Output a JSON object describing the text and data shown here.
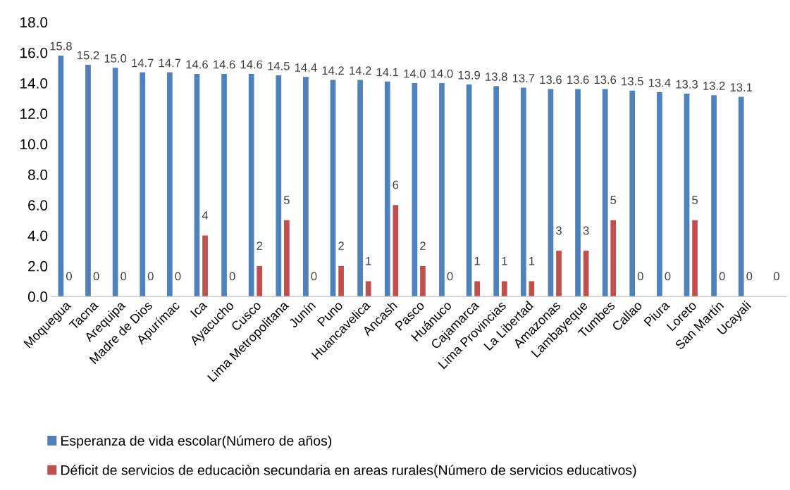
{
  "chart_data": {
    "type": "bar",
    "categories": [
      "Moquegua",
      "Tacna",
      "Arequipa",
      "Madre de Dios",
      "Apurímac",
      "Ica",
      "Ayacucho",
      "Cusco",
      "Lima Metropolitana",
      "Junín",
      "Puno",
      "Huancavelica",
      "Ancash",
      "Pasco",
      "Huánuco",
      "Cajamarca",
      "Lima Provincias",
      "La Libertad",
      "Amazonas",
      "Lambayeque",
      "Tumbes",
      "Callao",
      "Piura",
      "Loreto",
      "San Martín",
      "Ucayali",
      null
    ],
    "series": [
      {
        "name": "Esperanza de vida escolar(Número de años)",
        "color": "#4f81bd",
        "values": [
          15.8,
          15.2,
          15.0,
          14.7,
          14.7,
          14.6,
          14.6,
          14.6,
          14.5,
          14.4,
          14.2,
          14.2,
          14.1,
          14.0,
          14.0,
          13.9,
          13.8,
          13.7,
          13.6,
          13.6,
          13.6,
          13.5,
          13.4,
          13.3,
          13.2,
          13.1,
          null
        ],
        "value_labels": [
          "15.8",
          "15.2",
          "15.0",
          "14.7",
          "14.7",
          "14.6",
          "14.6",
          "14.6",
          "14.5",
          "14.4",
          "14.2",
          "14.2",
          "14.1",
          "14.0",
          "14.0",
          "13.9",
          "13.8",
          "13.7",
          "13.6",
          "13.6",
          "13.6",
          "13.5",
          "13.4",
          "13.3",
          "13.2",
          "13.1",
          null
        ]
      },
      {
        "name": "Déficit de servicios de educaciòn secundaria en areas rurales(Número de servicios educativos)",
        "color": "#c0504d",
        "values": [
          0,
          0,
          0,
          0,
          0,
          4,
          0,
          2,
          5,
          0,
          2,
          1,
          6,
          2,
          0,
          1,
          1,
          1,
          3,
          3,
          5,
          0,
          0,
          5,
          0,
          0,
          0
        ],
        "value_labels": [
          "0",
          "0",
          "0",
          "0",
          "0",
          "4",
          "0",
          "2",
          "5",
          "0",
          "2",
          "1",
          "6",
          "2",
          "0",
          "1",
          "1",
          "1",
          "3",
          "3",
          "5",
          "0",
          "0",
          "5",
          "0",
          "0",
          "0"
        ]
      }
    ],
    "ylim": [
      0,
      18
    ],
    "yticks": [
      {
        "value": 0,
        "label": "0.0"
      },
      {
        "value": 2,
        "label": "2.0"
      },
      {
        "value": 4,
        "label": "4.0"
      },
      {
        "value": 6,
        "label": "6.0"
      },
      {
        "value": 8,
        "label": "8.0"
      },
      {
        "value": 10,
        "label": "10.0"
      },
      {
        "value": 12,
        "label": "12.0"
      },
      {
        "value": 14,
        "label": "14.0"
      },
      {
        "value": 16,
        "label": "16.0"
      },
      {
        "value": 18,
        "label": "18.0"
      }
    ],
    "grid": false,
    "legend": "bottom"
  }
}
